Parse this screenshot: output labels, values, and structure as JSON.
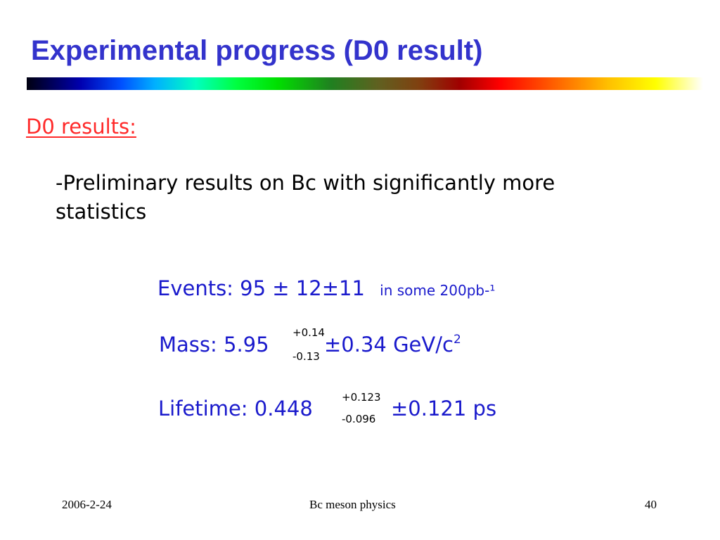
{
  "slide": {
    "title": "Experimental progress (D0 result)",
    "subheading": "D0 results:",
    "bullet": "-Preliminary results on Bc with significantly more statistics"
  },
  "results": {
    "events": {
      "label": "Events: 95 ± 12±11",
      "note": "in some 200pb-¹"
    },
    "mass": {
      "label": "Mass: 5.95",
      "upper": "+0.14",
      "lower": "-0.13",
      "tail": "±0.34 GeV/c",
      "exponent": "2"
    },
    "lifetime": {
      "label": "Lifetime: 0.448",
      "upper": "+0.123",
      "lower": "-0.096",
      "tail": "±0.121 ps"
    }
  },
  "footer": {
    "date": "2006-2-24",
    "center": "Bc meson physics",
    "page": "40"
  },
  "colors": {
    "title": "#3333cc",
    "subheading": "#ff2a2a",
    "results": "#1a1acc"
  }
}
